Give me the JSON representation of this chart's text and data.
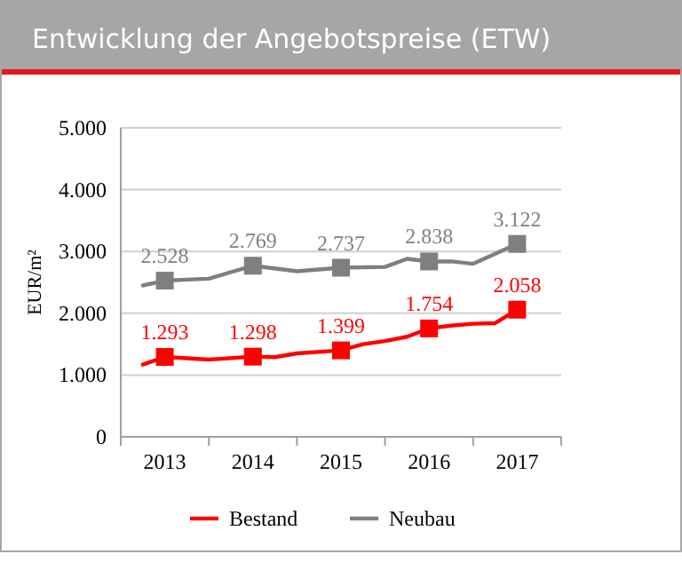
{
  "chart_data": {
    "type": "line",
    "title": "Entwicklung der Angebotspreise (ETW)",
    "ylabel": "EUR/m²",
    "xlim": [
      2012.5,
      2017.5
    ],
    "xticks": [
      {
        "value": 2012.5,
        "label": null
      },
      2013,
      {
        "value": 2013.5,
        "label": null
      },
      2014,
      {
        "value": 2014.5,
        "label": null
      },
      2015,
      {
        "value": 2015.5,
        "label": null
      },
      2016,
      {
        "value": 2016.5,
        "label": null
      },
      2017,
      {
        "value": 2017.5,
        "label": null
      }
    ],
    "ylim": [
      0,
      5000
    ],
    "yticks": [
      {
        "value": 0,
        "label": "0"
      },
      {
        "value": 1000,
        "label": "1.000"
      },
      {
        "value": 2000,
        "label": "2.000"
      },
      {
        "value": 3000,
        "label": "3.000"
      },
      {
        "value": 4000,
        "label": "4.000"
      },
      {
        "value": 5000,
        "label": "5.000"
      }
    ],
    "grid": "y",
    "legend": "bottom",
    "line_style": "solid",
    "series": [
      {
        "name": "Bestand",
        "color": "#ff0000",
        "marker": "none",
        "x": [
          2012.75,
          2013,
          2013.5,
          2014,
          2014.25,
          2014.5,
          2015,
          2015.25,
          2015.5,
          2015.75,
          2016,
          2016.25,
          2016.5,
          2016.75,
          2017
        ],
        "values": [
          1170,
          1293,
          1250,
          1298,
          1290,
          1350,
          1399,
          1500,
          1550,
          1620,
          1754,
          1800,
          1830,
          1840,
          2058
        ]
      },
      {
        "name": "Neubau",
        "color": "#7f7f7f",
        "marker": "none",
        "x": [
          2012.75,
          2013,
          2013.5,
          2014,
          2014.5,
          2015,
          2015.5,
          2015.75,
          2016,
          2016.25,
          2016.5,
          2017
        ],
        "values": [
          2450,
          2528,
          2560,
          2769,
          2680,
          2737,
          2750,
          2880,
          2838,
          2840,
          2800,
          3122
        ]
      },
      {
        "type": "scatter",
        "color": "#ff0000",
        "marker": "square",
        "x": [
          2013,
          2014,
          2015,
          2016,
          2017
        ],
        "values": [
          1293,
          1298,
          1399,
          1754,
          2058
        ],
        "value_labels": [
          "1.293",
          "1.298",
          "1.399",
          "1.754",
          "2.058"
        ]
      },
      {
        "type": "scatter",
        "color": "#7f7f7f",
        "marker": "square",
        "x": [
          2013,
          2014,
          2015,
          2016,
          2017
        ],
        "values": [
          2528,
          2769,
          2737,
          2838,
          3122
        ],
        "value_labels": [
          "2.528",
          "2.769",
          "2.737",
          "2.838",
          "3.122"
        ]
      }
    ]
  }
}
